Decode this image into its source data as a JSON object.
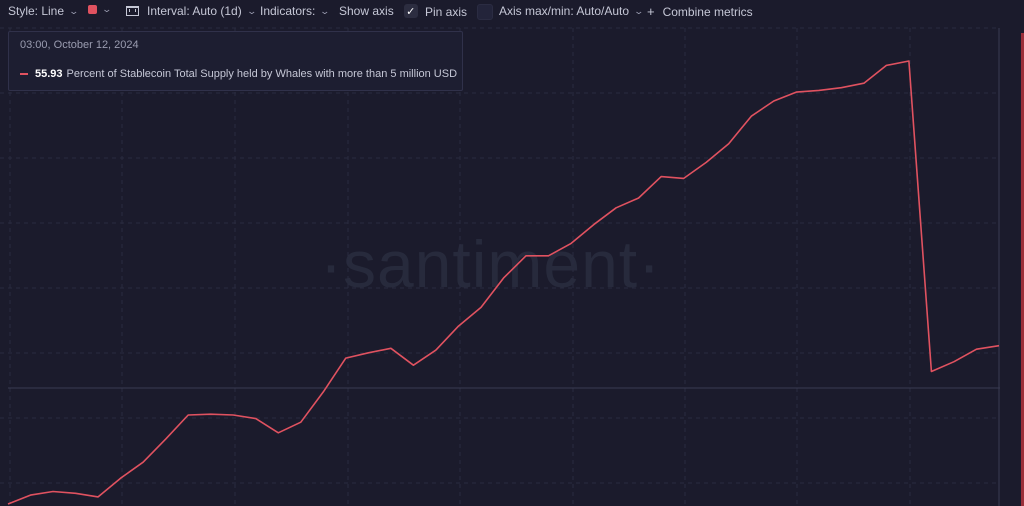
{
  "toolbar": {
    "style_label": "Style: Line",
    "color": "#e05260",
    "interval_label": "Interval: Auto (1d)",
    "indicators_label": "Indicators:",
    "show_axis_label": "Show axis",
    "show_axis_checked": true,
    "pin_axis_label": "Pin axis",
    "pin_axis_checked": false,
    "axis_label": "Axis max/min: Auto/Auto",
    "combine_label": "Combine metrics"
  },
  "tooltip": {
    "date": "03:00, October 12, 2024",
    "value": "55.93",
    "metric": "Percent of Stablecoin Total Supply held by Whales with more than 5 million USD"
  },
  "watermark": "·santiment·",
  "chart_data": {
    "type": "line",
    "series": [
      {
        "name": "Percent of Stablecoin Total Supply held by Whales with more than 5 million USD",
        "color": "#e05260",
        "x": [
          0,
          1,
          2,
          3,
          4,
          5,
          6,
          7,
          8,
          9,
          10,
          11,
          12,
          13,
          14,
          15,
          16,
          17,
          18,
          19,
          20,
          21,
          22,
          23,
          24,
          25,
          26,
          27,
          28,
          29,
          30,
          31,
          32,
          33,
          34,
          35,
          36,
          37,
          38,
          39,
          40,
          41,
          42,
          43,
          44
        ],
        "values": [
          0.0,
          1.0,
          1.4,
          1.2,
          0.8,
          2.9,
          4.7,
          7.3,
          10.0,
          10.1,
          10.0,
          9.6,
          8.0,
          9.2,
          12.6,
          16.4,
          17.0,
          17.5,
          15.6,
          17.3,
          20.0,
          22.1,
          25.4,
          27.9,
          27.9,
          29.3,
          31.4,
          33.3,
          34.4,
          36.8,
          36.6,
          38.4,
          40.5,
          43.6,
          45.3,
          46.3,
          46.5,
          46.8,
          47.3,
          49.3,
          49.8,
          14.9,
          16.0,
          17.4,
          17.8
        ]
      }
    ],
    "highlight_index": 44,
    "grid": true,
    "y_axis_visible": false
  }
}
